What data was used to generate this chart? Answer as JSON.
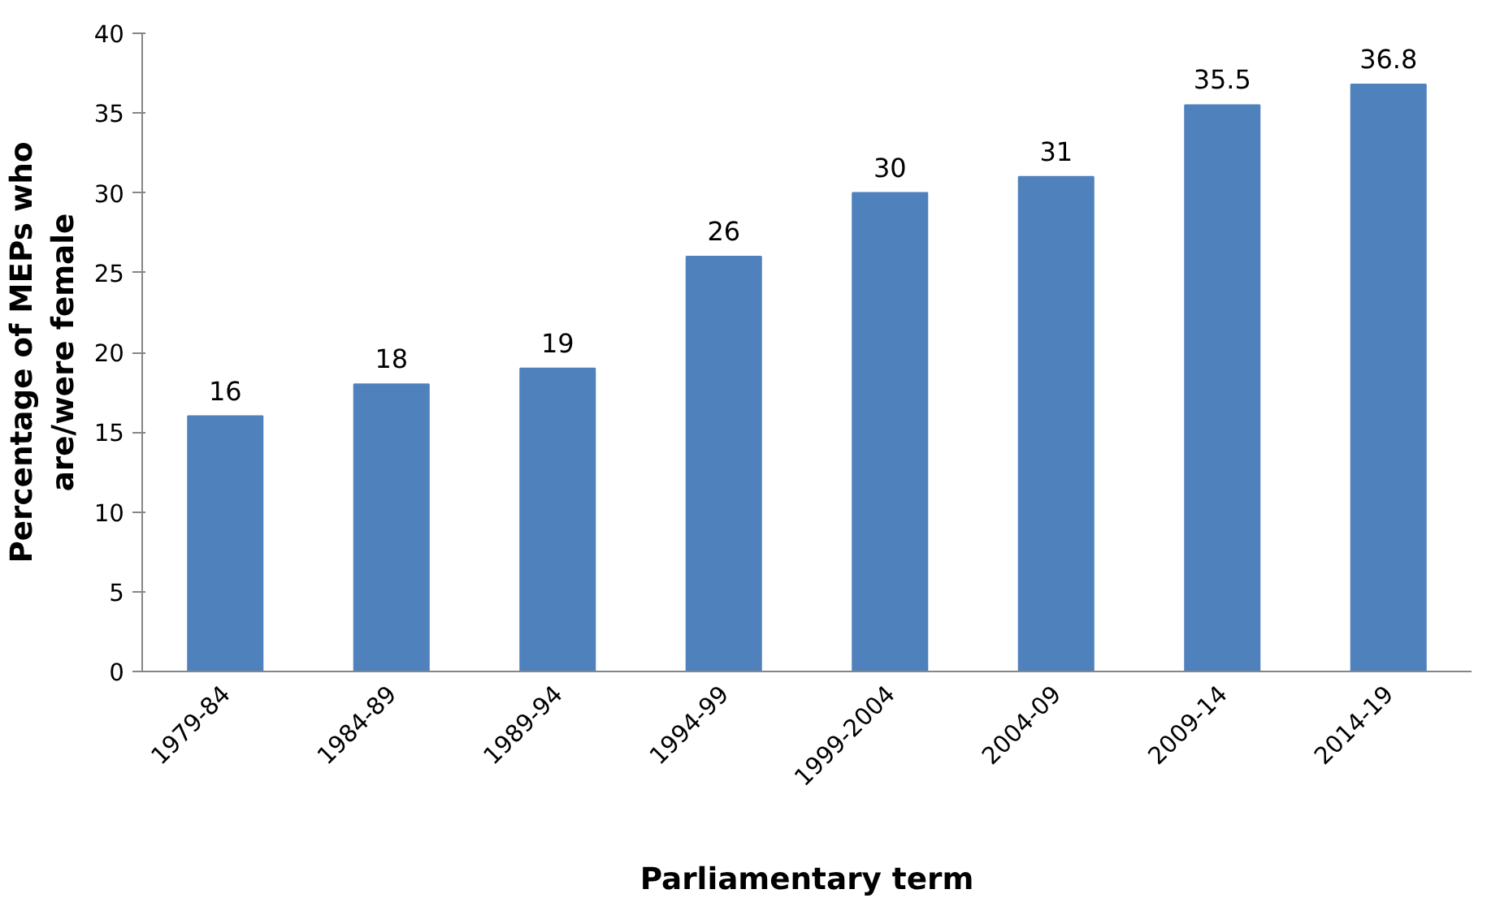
{
  "chart_data": {
    "type": "bar",
    "xlabel": "Parliamentary term",
    "ylabel": "Percentage of MEPs who\nare/were female",
    "categories": [
      "1979-84",
      "1984-89",
      "1989-94",
      "1994-99",
      "1999-2004",
      "2004-09",
      "2009-14",
      "2014-19"
    ],
    "values": [
      16,
      18,
      19,
      26,
      30,
      31,
      35.5,
      36.8
    ],
    "color": "#4f81bd",
    "ylim": [
      0,
      40
    ],
    "yticks": [
      0,
      5,
      10,
      15,
      20,
      25,
      30,
      35,
      40
    ],
    "grid": false,
    "data_labels": true
  }
}
